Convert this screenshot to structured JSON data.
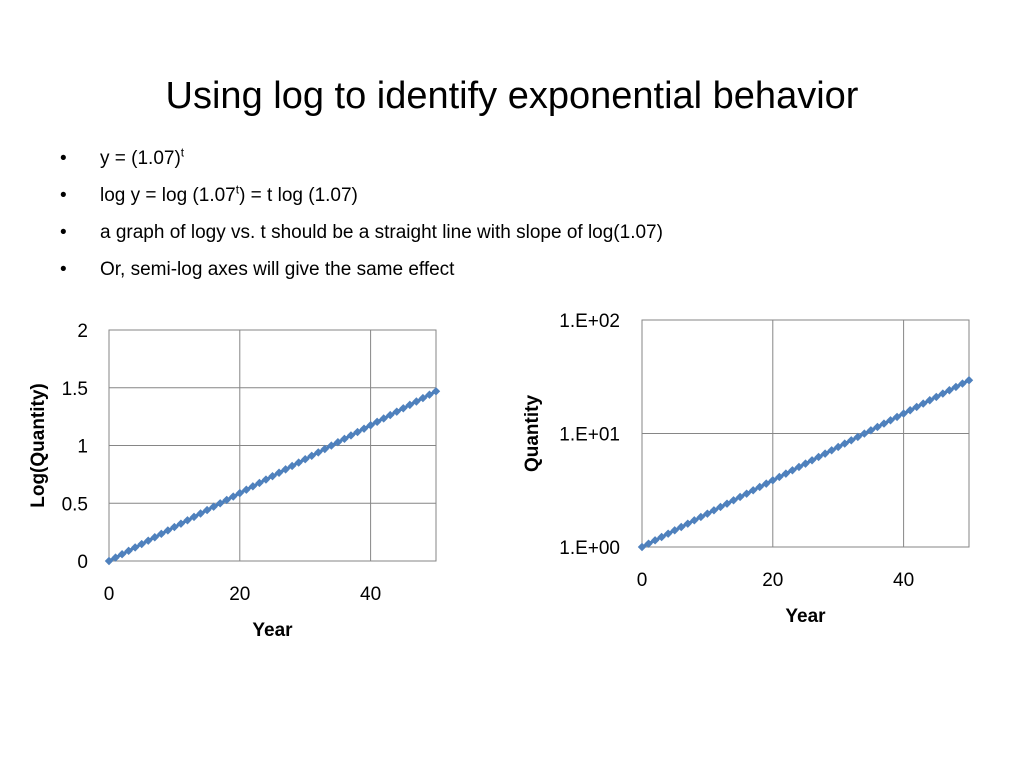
{
  "slide": {
    "title": "Using log to identify exponential behavior",
    "bullet_char": "•",
    "bullets": [
      {
        "parts": [
          "y = (1.07)",
          "t",
          ""
        ]
      },
      {
        "parts": [
          "log y = log (1.07",
          "t",
          ") = t log (1.07)"
        ]
      },
      {
        "parts": [
          "a graph of logy vs. t should be a straight line with slope of log(1.07)",
          "",
          ""
        ]
      },
      {
        "parts": [
          "Or, semi-log axes will give the same effect",
          "",
          ""
        ]
      }
    ]
  },
  "colors": {
    "series": "#4f81bd",
    "gridline": "#868686"
  },
  "chart_data": [
    {
      "type": "scatter",
      "title": "",
      "xlabel": "Year",
      "ylabel": "Log(Quantity)",
      "xlim": [
        0,
        50
      ],
      "ylim": [
        0,
        2
      ],
      "xticks": [
        0,
        20,
        40
      ],
      "xtick_labels": [
        "0",
        "20",
        "40"
      ],
      "yticks": [
        0,
        0.5,
        1,
        1.5,
        2
      ],
      "ytick_labels": [
        "0",
        "0.5",
        "1",
        "1.5",
        "2"
      ],
      "log_scale_y": false,
      "grid": true,
      "legend": "none",
      "marker": "diamond",
      "series": [
        {
          "x_start": 0,
          "x_end": 50,
          "x_step": 1,
          "function": "t*log10(1.07)",
          "y_start": 0,
          "y_end": 1.469
        }
      ]
    },
    {
      "type": "scatter",
      "title": "",
      "xlabel": "Year",
      "ylabel": "Quantity",
      "xlim": [
        0,
        50
      ],
      "ylim": [
        1,
        100
      ],
      "xticks": [
        0,
        20,
        40
      ],
      "xtick_labels": [
        "0",
        "20",
        "40"
      ],
      "yticks": [
        1,
        10,
        100
      ],
      "ytick_labels": [
        "1.E+00",
        "1.E+01",
        "1.E+02"
      ],
      "log_scale_y": true,
      "grid": true,
      "legend": "none",
      "marker": "diamond",
      "series": [
        {
          "x_start": 0,
          "x_end": 50,
          "x_step": 1,
          "function": "1.07^t",
          "y_start": 1,
          "y_end": 29.457
        }
      ]
    }
  ]
}
